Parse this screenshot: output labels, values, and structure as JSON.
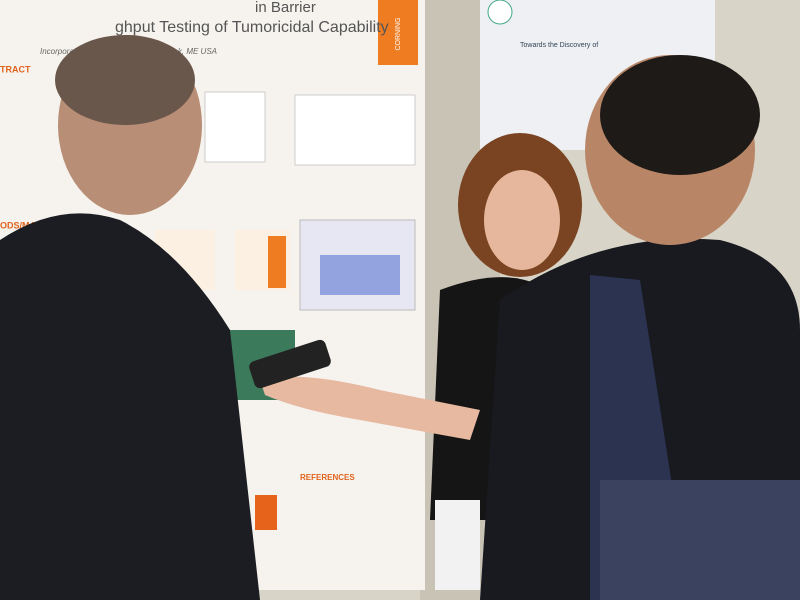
{
  "left_poster": {
    "title_line1": "in Barrier",
    "title_line2": "ghput Testing of Tumoricidal Capability",
    "affiliation": "Incorporated, Life Sciences, Kennebunk, ME USA",
    "logo": "CORNING",
    "sections": [
      "TRACT",
      "ODS/MATER",
      "REFERENCES"
    ]
  },
  "right_poster": {
    "title": "Towards the Discovery of"
  }
}
